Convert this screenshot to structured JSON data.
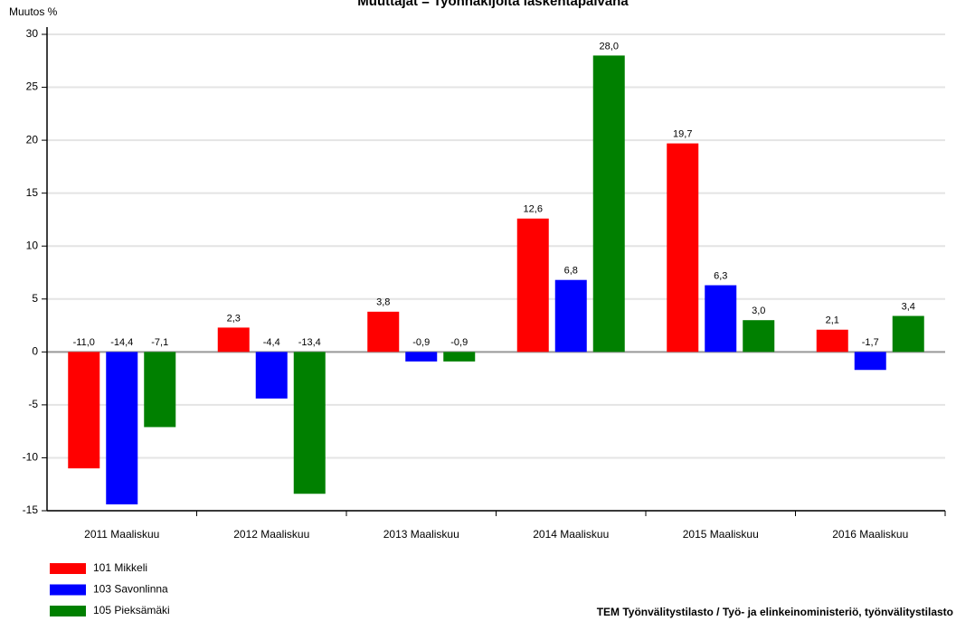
{
  "chart_data": {
    "type": "bar",
    "title": "Muuttajat = Työnhakijoita laskentapäivänä",
    "y_label": "Muutos %",
    "source": "TEM Työnvälitystilasto / Työ- ja elinkeinoministeriö, työnvälitystilasto",
    "categories": [
      "2011 Maaliskuu",
      "2012 Maaliskuu",
      "2013 Maaliskuu",
      "2014 Maaliskuu",
      "2015 Maaliskuu",
      "2016 Maaliskuu"
    ],
    "series": [
      {
        "name": "101 Mikkeli",
        "color": "#ff0000",
        "values": [
          -11.0,
          2.3,
          3.8,
          12.6,
          19.7,
          2.1
        ],
        "value_labels": [
          "-11,0",
          "2,3",
          "3,8",
          "12,6",
          "19,7",
          "2,1"
        ]
      },
      {
        "name": "103 Savonlinna",
        "color": "#0000ff",
        "values": [
          -14.4,
          -4.4,
          -0.9,
          6.8,
          6.3,
          -1.7
        ],
        "value_labels": [
          "-14,4",
          "-4,4",
          "-0,9",
          "6,8",
          "6,3",
          "-1,7"
        ]
      },
      {
        "name": "105 Pieksämäki",
        "color": "#008000",
        "values": [
          -7.1,
          -13.4,
          -0.9,
          28.0,
          3.0,
          3.4
        ],
        "value_labels": [
          "-7,1",
          "-13,4",
          "-0,9",
          "28,0",
          "3,0",
          "3,4"
        ]
      }
    ],
    "ylim": [
      -15,
      30
    ],
    "yticks": [
      -15,
      -10,
      -5,
      0,
      5,
      10,
      15,
      20,
      25,
      30
    ],
    "grid": true,
    "legend": "bottom-left"
  }
}
